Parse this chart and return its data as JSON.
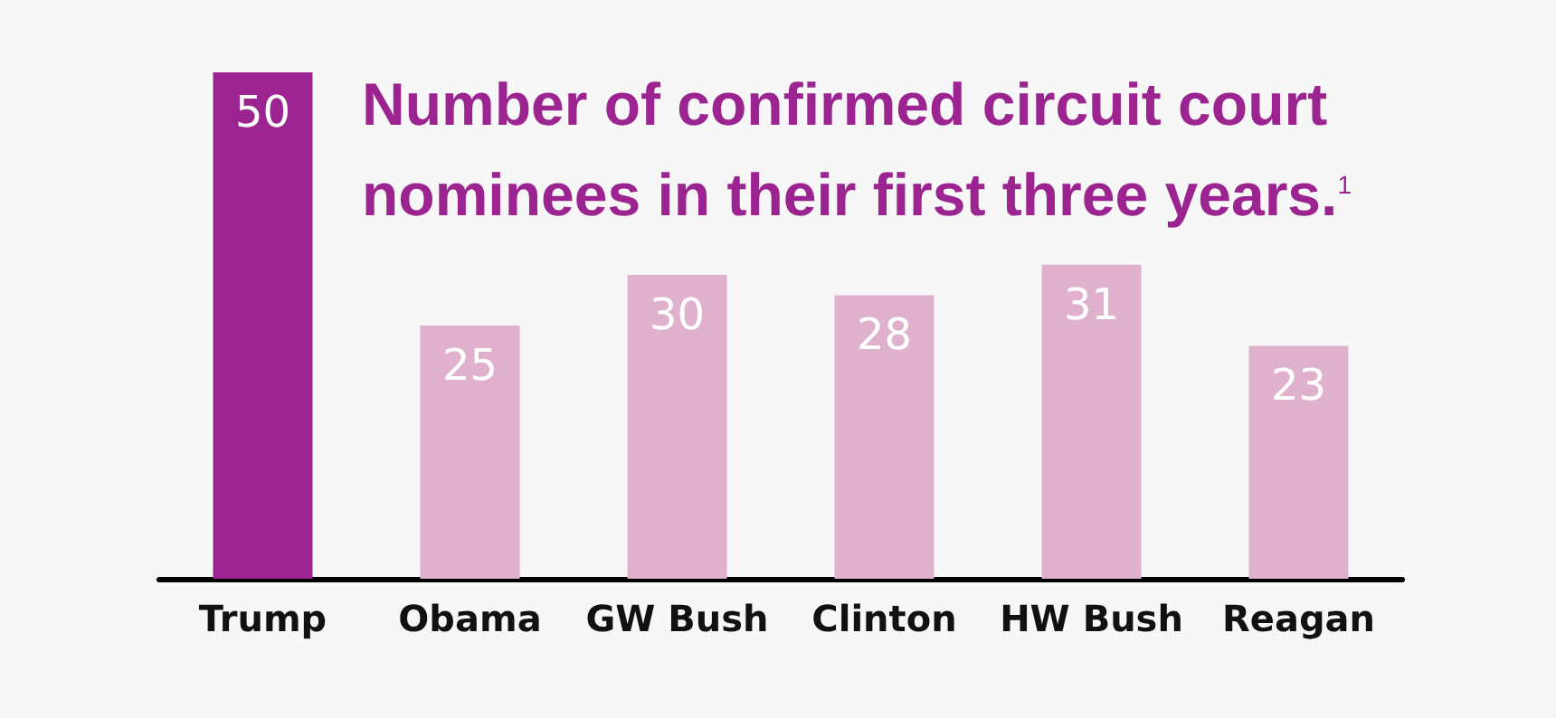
{
  "chart_data": {
    "type": "bar",
    "title": "Number of confirmed circuit court nominees in their first three years.$^{1}$",
    "categories": [
      "Trump",
      "Obama",
      "GW Bush",
      "Clinton",
      "HW Bush",
      "Reagan"
    ],
    "values": [
      50,
      25,
      30,
      28,
      31,
      23
    ],
    "colors": [
      "#9b2490",
      "#e0b1cc",
      "#e0b1cc",
      "#e0b1cc",
      "#e0b1cc",
      "#e0b1cc"
    ],
    "data_labels": true
  }
}
